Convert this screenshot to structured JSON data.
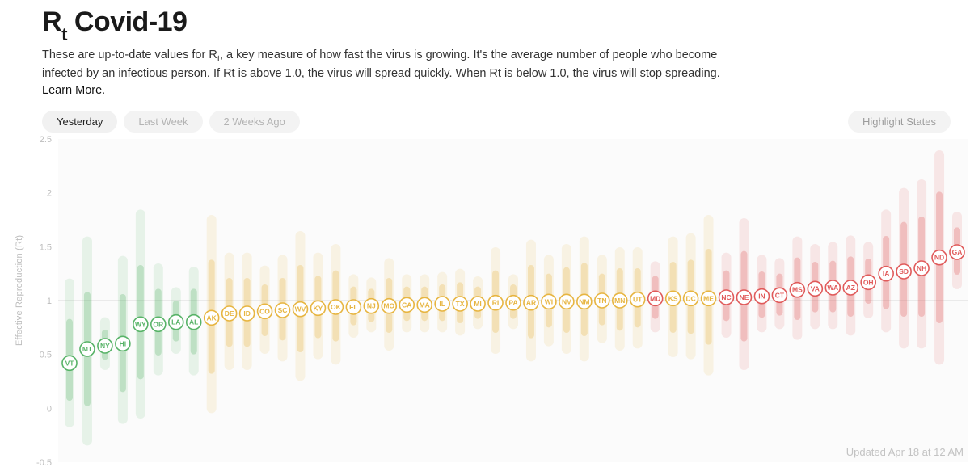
{
  "header": {
    "title_prefix": "R",
    "title_sub": "t",
    "title_suffix": " Covid-19",
    "desc_pre": "These are up-to-date values for R",
    "desc_sub": "t",
    "desc_post": ", a key measure of how fast the virus is growing. It's the average number of people who become infected by an infectious person. If Rt is above 1.0, the virus will spread quickly. When Rt is below 1.0, the virus will stop spreading. ",
    "learn_more": "Learn More"
  },
  "controls": {
    "tabs": [
      "Yesterday",
      "Last Week",
      "2 Weeks Ago"
    ],
    "active_tab": 0,
    "highlight": "Highlight States"
  },
  "chart": {
    "type": "dot-with-interval",
    "ylabel": "Effective Reproduction (Rt)",
    "ylim": [
      -0.5,
      2.5
    ],
    "yticks": [
      -0.5,
      0,
      0.5,
      1,
      1.5,
      2,
      2.5
    ],
    "plot_bg": "#fbfbfb",
    "ref_line_y": 1.0,
    "ref_line_color": "#d9d9d9",
    "tick_text_color": "#bdbdbd",
    "label_text_color": "#bdbdbd",
    "updated_text": "Updated Apr 18 at 12 AM",
    "band_opacity_outer": 0.12,
    "band_opacity_inner": 0.28,
    "band_width_outer": 12,
    "band_width_inner": 8,
    "marker_radius": 9,
    "marker_fill": "#ffffff",
    "marker_stroke_width": 1.6,
    "label_fontsize": 8.5,
    "colors": {
      "green": "#58b368",
      "yellow": "#e7b541",
      "red": "#e05a5a"
    },
    "states": [
      {
        "code": "VT",
        "rt": 0.42,
        "lo2": -0.13,
        "hi2": 1.16,
        "lo1": 0.1,
        "hi1": 0.8,
        "c": "green"
      },
      {
        "code": "MT",
        "rt": 0.55,
        "lo2": -0.3,
        "hi2": 1.55,
        "lo1": 0.05,
        "hi1": 1.05,
        "c": "green"
      },
      {
        "code": "NY",
        "rt": 0.58,
        "lo2": 0.4,
        "hi2": 0.8,
        "lo1": 0.48,
        "hi1": 0.7,
        "c": "green"
      },
      {
        "code": "HI",
        "rt": 0.6,
        "lo2": -0.1,
        "hi2": 1.37,
        "lo1": 0.18,
        "hi1": 1.03,
        "c": "green"
      },
      {
        "code": "WY",
        "rt": 0.78,
        "lo2": -0.05,
        "hi2": 1.8,
        "lo1": 0.3,
        "hi1": 1.3,
        "c": "green"
      },
      {
        "code": "OR",
        "rt": 0.78,
        "lo2": 0.35,
        "hi2": 1.3,
        "lo1": 0.52,
        "hi1": 1.08,
        "c": "green"
      },
      {
        "code": "LA",
        "rt": 0.8,
        "lo2": 0.55,
        "hi2": 1.08,
        "lo1": 0.65,
        "hi1": 0.97,
        "c": "green"
      },
      {
        "code": "AL",
        "rt": 0.8,
        "lo2": 0.35,
        "hi2": 1.27,
        "lo1": 0.53,
        "hi1": 1.08,
        "c": "green"
      },
      {
        "code": "AK",
        "rt": 0.84,
        "lo2": 0.0,
        "hi2": 1.75,
        "lo1": 0.35,
        "hi1": 1.35,
        "c": "yellow"
      },
      {
        "code": "DE",
        "rt": 0.88,
        "lo2": 0.4,
        "hi2": 1.4,
        "lo1": 0.6,
        "hi1": 1.18,
        "c": "yellow"
      },
      {
        "code": "ID",
        "rt": 0.88,
        "lo2": 0.4,
        "hi2": 1.4,
        "lo1": 0.6,
        "hi1": 1.18,
        "c": "yellow"
      },
      {
        "code": "CO",
        "rt": 0.9,
        "lo2": 0.55,
        "hi2": 1.28,
        "lo1": 0.7,
        "hi1": 1.12,
        "c": "yellow"
      },
      {
        "code": "SC",
        "rt": 0.91,
        "lo2": 0.48,
        "hi2": 1.38,
        "lo1": 0.66,
        "hi1": 1.18,
        "c": "yellow"
      },
      {
        "code": "WV",
        "rt": 0.92,
        "lo2": 0.3,
        "hi2": 1.6,
        "lo1": 0.55,
        "hi1": 1.3,
        "c": "yellow"
      },
      {
        "code": "KY",
        "rt": 0.93,
        "lo2": 0.5,
        "hi2": 1.4,
        "lo1": 0.68,
        "hi1": 1.2,
        "c": "yellow"
      },
      {
        "code": "OK",
        "rt": 0.94,
        "lo2": 0.45,
        "hi2": 1.48,
        "lo1": 0.65,
        "hi1": 1.25,
        "c": "yellow"
      },
      {
        "code": "FL",
        "rt": 0.94,
        "lo2": 0.7,
        "hi2": 1.2,
        "lo1": 0.8,
        "hi1": 1.1,
        "c": "yellow"
      },
      {
        "code": "NJ",
        "rt": 0.95,
        "lo2": 0.75,
        "hi2": 1.17,
        "lo1": 0.83,
        "hi1": 1.08,
        "c": "yellow"
      },
      {
        "code": "MO",
        "rt": 0.95,
        "lo2": 0.58,
        "hi2": 1.35,
        "lo1": 0.73,
        "hi1": 1.18,
        "c": "yellow"
      },
      {
        "code": "CA",
        "rt": 0.96,
        "lo2": 0.75,
        "hi2": 1.2,
        "lo1": 0.84,
        "hi1": 1.1,
        "c": "yellow"
      },
      {
        "code": "MA",
        "rt": 0.96,
        "lo2": 0.75,
        "hi2": 1.2,
        "lo1": 0.84,
        "hi1": 1.1,
        "c": "yellow"
      },
      {
        "code": "IL",
        "rt": 0.97,
        "lo2": 0.75,
        "hi2": 1.22,
        "lo1": 0.84,
        "hi1": 1.12,
        "c": "yellow"
      },
      {
        "code": "TX",
        "rt": 0.97,
        "lo2": 0.72,
        "hi2": 1.25,
        "lo1": 0.82,
        "hi1": 1.14,
        "c": "yellow"
      },
      {
        "code": "MI",
        "rt": 0.97,
        "lo2": 0.78,
        "hi2": 1.18,
        "lo1": 0.86,
        "hi1": 1.1,
        "c": "yellow"
      },
      {
        "code": "RI",
        "rt": 0.98,
        "lo2": 0.55,
        "hi2": 1.45,
        "lo1": 0.73,
        "hi1": 1.25,
        "c": "yellow"
      },
      {
        "code": "PA",
        "rt": 0.98,
        "lo2": 0.78,
        "hi2": 1.2,
        "lo1": 0.86,
        "hi1": 1.12,
        "c": "yellow"
      },
      {
        "code": "AR",
        "rt": 0.98,
        "lo2": 0.48,
        "hi2": 1.52,
        "lo1": 0.68,
        "hi1": 1.3,
        "c": "yellow"
      },
      {
        "code": "WI",
        "rt": 0.99,
        "lo2": 0.62,
        "hi2": 1.38,
        "lo1": 0.78,
        "hi1": 1.22,
        "c": "yellow"
      },
      {
        "code": "NV",
        "rt": 0.99,
        "lo2": 0.55,
        "hi2": 1.48,
        "lo1": 0.73,
        "hi1": 1.28,
        "c": "yellow"
      },
      {
        "code": "NM",
        "rt": 0.99,
        "lo2": 0.48,
        "hi2": 1.55,
        "lo1": 0.7,
        "hi1": 1.32,
        "c": "yellow"
      },
      {
        "code": "TN",
        "rt": 1.0,
        "lo2": 0.65,
        "hi2": 1.38,
        "lo1": 0.8,
        "hi1": 1.22,
        "c": "yellow"
      },
      {
        "code": "MN",
        "rt": 1.0,
        "lo2": 0.58,
        "hi2": 1.45,
        "lo1": 0.75,
        "hi1": 1.27,
        "c": "yellow"
      },
      {
        "code": "UT",
        "rt": 1.01,
        "lo2": 0.6,
        "hi2": 1.45,
        "lo1": 0.78,
        "hi1": 1.27,
        "c": "yellow"
      },
      {
        "code": "MD",
        "rt": 1.02,
        "lo2": 0.75,
        "hi2": 1.32,
        "lo1": 0.86,
        "hi1": 1.2,
        "c": "red"
      },
      {
        "code": "KS",
        "rt": 1.02,
        "lo2": 0.52,
        "hi2": 1.55,
        "lo1": 0.73,
        "hi1": 1.33,
        "c": "yellow"
      },
      {
        "code": "DC",
        "rt": 1.02,
        "lo2": 0.5,
        "hi2": 1.58,
        "lo1": 0.72,
        "hi1": 1.35,
        "c": "yellow"
      },
      {
        "code": "ME",
        "rt": 1.02,
        "lo2": 0.35,
        "hi2": 1.75,
        "lo1": 0.62,
        "hi1": 1.45,
        "c": "yellow"
      },
      {
        "code": "NC",
        "rt": 1.03,
        "lo2": 0.7,
        "hi2": 1.4,
        "lo1": 0.84,
        "hi1": 1.25,
        "c": "red"
      },
      {
        "code": "NE",
        "rt": 1.03,
        "lo2": 0.4,
        "hi2": 1.72,
        "lo1": 0.65,
        "hi1": 1.43,
        "c": "red"
      },
      {
        "code": "IN",
        "rt": 1.04,
        "lo2": 0.75,
        "hi2": 1.38,
        "lo1": 0.87,
        "hi1": 1.24,
        "c": "red"
      },
      {
        "code": "CT",
        "rt": 1.05,
        "lo2": 0.78,
        "hi2": 1.35,
        "lo1": 0.89,
        "hi1": 1.22,
        "c": "red"
      },
      {
        "code": "MS",
        "rt": 1.1,
        "lo2": 0.68,
        "hi2": 1.55,
        "lo1": 0.85,
        "hi1": 1.37,
        "c": "red"
      },
      {
        "code": "VA",
        "rt": 1.11,
        "lo2": 0.78,
        "hi2": 1.48,
        "lo1": 0.92,
        "hi1": 1.33,
        "c": "red"
      },
      {
        "code": "WA",
        "rt": 1.12,
        "lo2": 0.78,
        "hi2": 1.5,
        "lo1": 0.92,
        "hi1": 1.34,
        "c": "red"
      },
      {
        "code": "AZ",
        "rt": 1.12,
        "lo2": 0.72,
        "hi2": 1.56,
        "lo1": 0.88,
        "hi1": 1.38,
        "c": "red"
      },
      {
        "code": "OH",
        "rt": 1.17,
        "lo2": 0.88,
        "hi2": 1.5,
        "lo1": 1.0,
        "hi1": 1.36,
        "c": "red"
      },
      {
        "code": "IA",
        "rt": 1.25,
        "lo2": 0.75,
        "hi2": 1.8,
        "lo1": 0.95,
        "hi1": 1.57,
        "c": "red"
      },
      {
        "code": "SD",
        "rt": 1.27,
        "lo2": 0.6,
        "hi2": 2.0,
        "lo1": 0.88,
        "hi1": 1.7,
        "c": "red"
      },
      {
        "code": "NH",
        "rt": 1.3,
        "lo2": 0.6,
        "hi2": 2.08,
        "lo1": 0.88,
        "hi1": 1.75,
        "c": "red"
      },
      {
        "code": "ND",
        "rt": 1.4,
        "lo2": 0.45,
        "hi2": 2.35,
        "lo1": 0.82,
        "hi1": 1.98,
        "c": "red"
      },
      {
        "code": "GA",
        "rt": 1.45,
        "lo2": 1.15,
        "hi2": 1.78,
        "lo1": 1.27,
        "hi1": 1.65,
        "c": "red"
      }
    ]
  }
}
